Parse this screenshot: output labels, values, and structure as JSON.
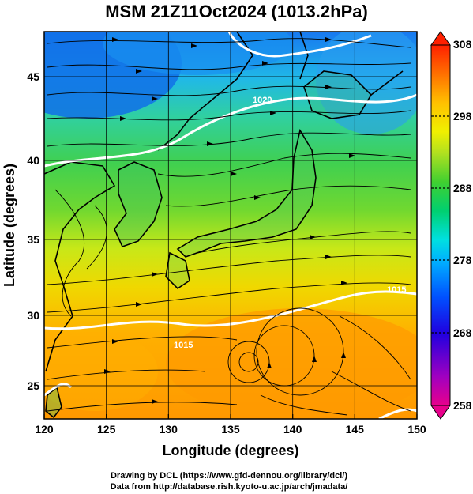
{
  "title": "MSM 21Z11Oct2024 (1013.2hPa)",
  "x_axis": {
    "label": "Longitude (degrees)",
    "ticks": [
      "120",
      "125",
      "130",
      "135",
      "140",
      "145",
      "150"
    ]
  },
  "y_axis": {
    "label": "Latitude  (degrees)",
    "ticks": [
      "25",
      "30",
      "35",
      "40",
      "45"
    ]
  },
  "colorbar": {
    "ticks": [
      "308",
      "298",
      "288",
      "278",
      "268",
      "258"
    ],
    "range": [
      258,
      308
    ],
    "colors": [
      "#e8008c",
      "#8000c8",
      "#0000e0",
      "#0050ff",
      "#00a0ff",
      "#00e0e0",
      "#00d890",
      "#30d030",
      "#90e020",
      "#e8f000",
      "#ffd000",
      "#ffa000",
      "#ff6000",
      "#ff2000"
    ]
  },
  "contour_labels": [
    "1020",
    "1015",
    "1015"
  ],
  "credits": {
    "line1": "Drawing by DCL (https://www.gfd-dennou.org/library/dcl/)",
    "line2": "Data from http://database.rish.kyoto-u.ac.jp/arch/jmadata/"
  },
  "chart_data": {
    "type": "heatmap",
    "title": "MSM 21Z11Oct2024 (1013.2hPa)",
    "xlabel": "Longitude (degrees)",
    "ylabel": "Latitude  (degrees)",
    "xlim": [
      120,
      150
    ],
    "ylim": [
      22.4,
      47.6
    ],
    "colorbar_range": [
      258,
      308
    ],
    "grid": true
  }
}
